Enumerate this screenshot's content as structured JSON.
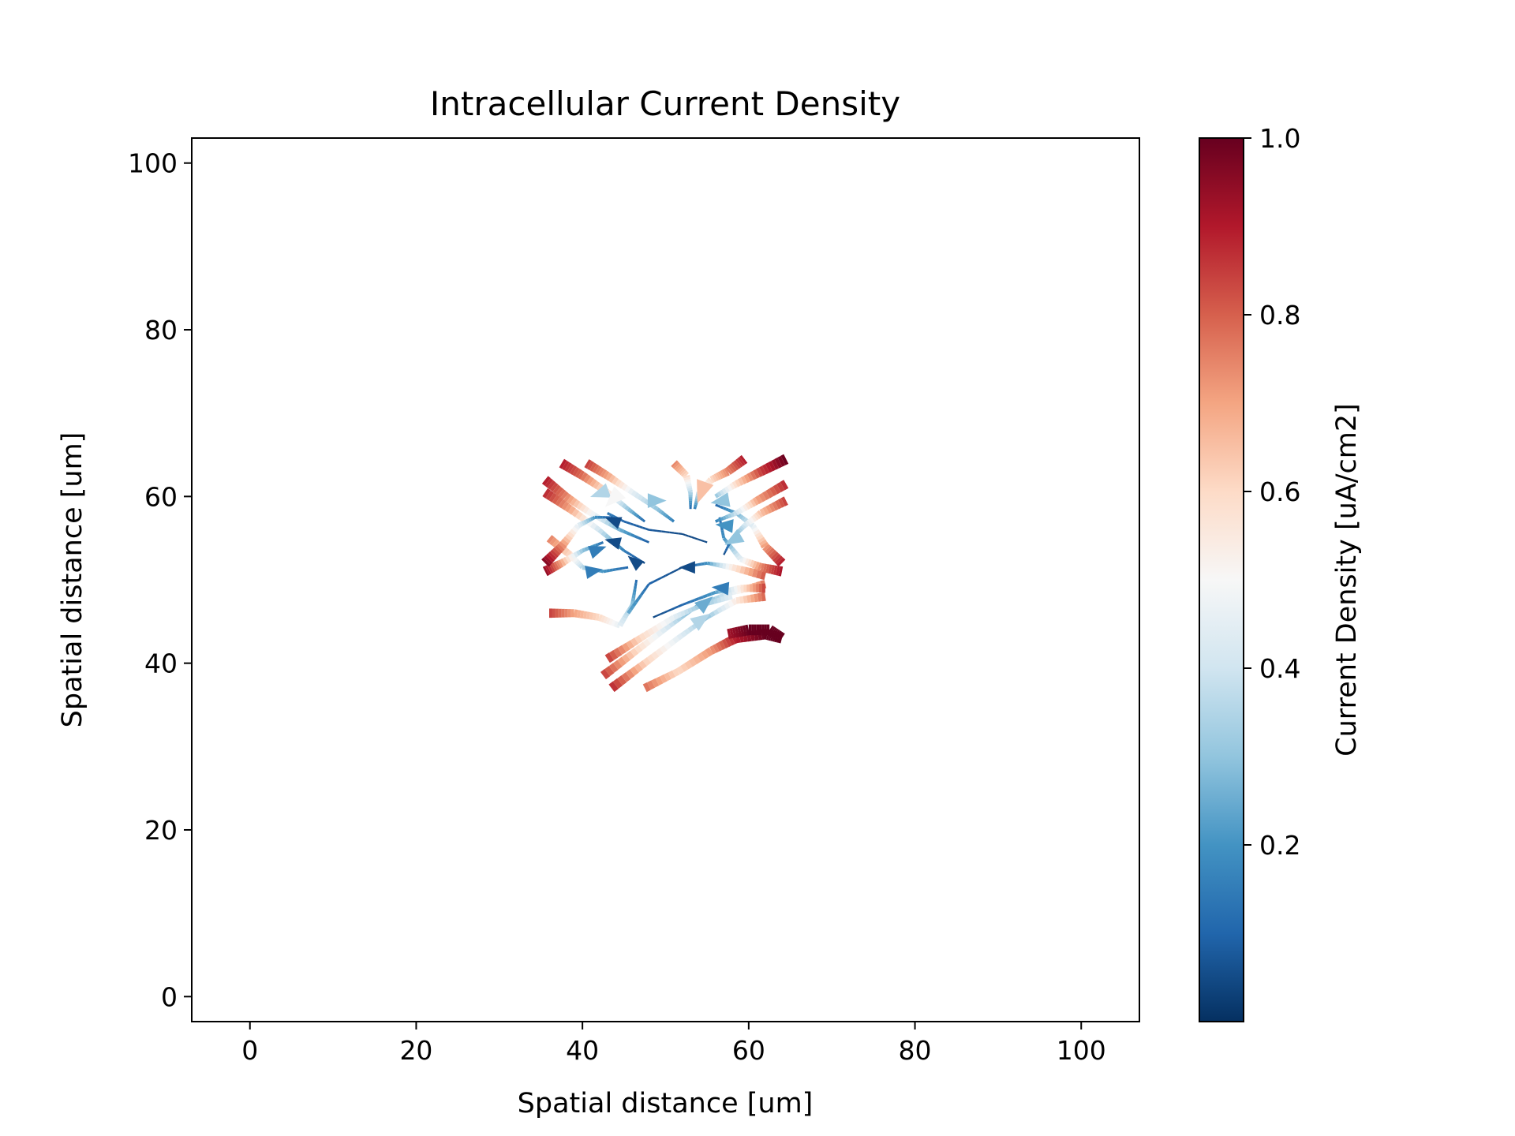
{
  "chart_data": {
    "type": "streamplot",
    "title": "Intracellular Current Density",
    "xlabel": "Spatial distance [um]",
    "ylabel": "Spatial distance [um]",
    "xlim": [
      -7,
      107
    ],
    "ylim": [
      -3,
      103
    ],
    "xticks": [
      0,
      20,
      40,
      60,
      80,
      100
    ],
    "yticks": [
      0,
      20,
      40,
      60,
      80,
      100
    ],
    "grid": false,
    "colormap": "RdBu_r",
    "colors": [
      "#053061",
      "#2166ac",
      "#4393c3",
      "#92c5de",
      "#d1e5f0",
      "#f7f7f7",
      "#fddbc7",
      "#f4a582",
      "#d6604d",
      "#b2182b",
      "#67001f"
    ],
    "colorbar": {
      "label": "Current Density [uA/cm2]",
      "range": [
        0.0,
        1.0
      ],
      "ticks": [
        0.2,
        0.4,
        0.6,
        0.8,
        1.0
      ],
      "tick_labels": [
        "0.2",
        "0.4",
        "0.6",
        "0.8",
        "1.0"
      ]
    },
    "streamlines": [
      {
        "points": [
          [
            37.5,
            64.0
          ],
          [
            40.0,
            62.5
          ],
          [
            43.0,
            60.5
          ],
          [
            45.5,
            58.5
          ],
          [
            47.5,
            57.0
          ]
        ],
        "values": [
          0.9,
          0.78,
          0.55,
          0.3,
          0.1
        ]
      },
      {
        "points": [
          [
            40.5,
            64.0
          ],
          [
            43.0,
            62.5
          ],
          [
            46.0,
            60.5
          ],
          [
            49.0,
            58.5
          ],
          [
            51.0,
            57.0
          ]
        ],
        "values": [
          0.85,
          0.7,
          0.45,
          0.3,
          0.15
        ]
      },
      {
        "points": [
          [
            35.5,
            62.0
          ],
          [
            38.0,
            60.0
          ],
          [
            41.0,
            58.0
          ],
          [
            44.5,
            56.0
          ],
          [
            48.0,
            54.5
          ]
        ],
        "values": [
          0.9,
          0.75,
          0.5,
          0.25,
          0.08
        ]
      },
      {
        "points": [
          [
            35.5,
            60.5
          ],
          [
            38.5,
            58.5
          ],
          [
            42.0,
            56.0
          ],
          [
            45.0,
            53.5
          ],
          [
            47.5,
            52.0
          ]
        ],
        "values": [
          0.88,
          0.7,
          0.4,
          0.15,
          0.05
        ]
      },
      {
        "points": [
          [
            36.0,
            55.0
          ],
          [
            38.5,
            53.0
          ],
          [
            40.0,
            51.5
          ],
          [
            42.5,
            51.0
          ],
          [
            45.5,
            51.5
          ]
        ],
        "values": [
          0.75,
          0.6,
          0.35,
          0.2,
          0.1
        ]
      },
      {
        "points": [
          [
            35.5,
            51.0
          ],
          [
            37.5,
            52.0
          ],
          [
            40.0,
            53.5
          ],
          [
            42.5,
            54.5
          ]
        ],
        "values": [
          0.95,
          0.7,
          0.3,
          0.12
        ]
      },
      {
        "points": [
          [
            35.5,
            52.0
          ],
          [
            37.5,
            54.0
          ],
          [
            39.5,
            56.5
          ],
          [
            41.5,
            57.5
          ],
          [
            44.0,
            57.5
          ]
        ],
        "values": [
          0.97,
          0.75,
          0.45,
          0.2,
          0.05
        ]
      },
      {
        "points": [
          [
            36.0,
            46.0
          ],
          [
            39.0,
            46.0
          ],
          [
            42.0,
            45.5
          ],
          [
            44.5,
            44.5
          ],
          [
            46.0,
            47.0
          ],
          [
            46.5,
            50.0
          ]
        ],
        "values": [
          0.85,
          0.7,
          0.6,
          0.45,
          0.3,
          0.1
        ]
      },
      {
        "points": [
          [
            43.5,
            37.0
          ],
          [
            47.5,
            40.0
          ],
          [
            51.5,
            43.0
          ],
          [
            55.0,
            45.5
          ],
          [
            58.5,
            47.5
          ],
          [
            62.0,
            48.0
          ]
        ],
        "values": [
          0.88,
          0.62,
          0.45,
          0.3,
          0.55,
          0.8
        ]
      },
      {
        "points": [
          [
            42.5,
            38.5
          ],
          [
            46.5,
            41.5
          ],
          [
            50.5,
            44.5
          ],
          [
            54.0,
            47.0
          ],
          [
            58.0,
            48.5
          ],
          [
            62.0,
            49.5
          ]
        ],
        "values": [
          0.85,
          0.6,
          0.4,
          0.22,
          0.45,
          0.78
        ]
      },
      {
        "points": [
          [
            43.0,
            40.5
          ],
          [
            47.0,
            43.0
          ],
          [
            51.0,
            45.5
          ],
          [
            54.5,
            47.0
          ],
          [
            58.0,
            48.0
          ]
        ],
        "values": [
          0.85,
          0.6,
          0.45,
          0.3,
          0.45
        ]
      },
      {
        "points": [
          [
            47.5,
            37.0
          ],
          [
            51.5,
            39.0
          ],
          [
            55.5,
            41.5
          ],
          [
            58.5,
            43.0
          ],
          [
            62.0,
            43.5
          ],
          [
            64.0,
            43.0
          ]
        ],
        "values": [
          0.78,
          0.6,
          0.72,
          0.9,
          1.0,
          1.0
        ]
      },
      {
        "points": [
          [
            57.5,
            43.5
          ],
          [
            60.0,
            44.0
          ],
          [
            62.5,
            44.0
          ],
          [
            64.0,
            43.0
          ]
        ],
        "values": [
          0.92,
          1.0,
          1.0,
          1.0
        ]
      },
      {
        "points": [
          [
            62.0,
            49.0
          ],
          [
            59.0,
            49.0
          ],
          [
            56.0,
            48.5
          ],
          [
            52.0,
            47.0
          ],
          [
            48.5,
            45.5
          ]
        ],
        "values": [
          0.85,
          0.55,
          0.22,
          0.1,
          0.05
        ]
      },
      {
        "points": [
          [
            62.0,
            50.5
          ],
          [
            58.0,
            51.5
          ],
          [
            55.0,
            52.0
          ],
          [
            52.0,
            51.5
          ],
          [
            48.0,
            49.5
          ],
          [
            45.5,
            46.0
          ]
        ],
        "values": [
          0.82,
          0.55,
          0.2,
          0.05,
          0.1,
          0.25
        ]
      },
      {
        "points": [
          [
            64.0,
            51.0
          ],
          [
            61.5,
            51.5
          ],
          [
            59.0,
            52.5
          ],
          [
            57.0,
            55.0
          ],
          [
            56.5,
            57.5
          ]
        ],
        "values": [
          0.92,
          0.75,
          0.45,
          0.2,
          0.1
        ]
      },
      {
        "points": [
          [
            64.0,
            52.0
          ],
          [
            62.0,
            54.0
          ],
          [
            60.5,
            56.5
          ],
          [
            58.5,
            58.0
          ],
          [
            56.0,
            59.0
          ]
        ],
        "values": [
          0.9,
          0.72,
          0.45,
          0.25,
          0.1
        ]
      },
      {
        "points": [
          [
            64.5,
            59.5
          ],
          [
            61.5,
            58.0
          ],
          [
            59.5,
            56.5
          ],
          [
            58.0,
            55.0
          ],
          [
            57.0,
            53.0
          ]
        ],
        "values": [
          0.85,
          0.65,
          0.4,
          0.2,
          0.05
        ]
      },
      {
        "points": [
          [
            64.5,
            61.5
          ],
          [
            61.0,
            59.5
          ],
          [
            58.5,
            58.0
          ],
          [
            56.0,
            57.0
          ]
        ],
        "values": [
          0.88,
          0.7,
          0.4,
          0.15
        ]
      },
      {
        "points": [
          [
            64.5,
            64.5
          ],
          [
            61.5,
            63.0
          ],
          [
            58.5,
            61.5
          ],
          [
            56.0,
            60.0
          ]
        ],
        "values": [
          1.0,
          0.85,
          0.6,
          0.3
        ]
      },
      {
        "points": [
          [
            59.5,
            64.5
          ],
          [
            57.5,
            63.0
          ],
          [
            55.5,
            62.0
          ],
          [
            54.0,
            60.5
          ],
          [
            53.5,
            58.5
          ]
        ],
        "values": [
          0.9,
          0.75,
          0.6,
          0.4,
          0.15
        ]
      },
      {
        "points": [
          [
            51.0,
            64.0
          ],
          [
            52.5,
            62.5
          ],
          [
            53.0,
            60.5
          ],
          [
            53.0,
            58.5
          ]
        ],
        "values": [
          0.75,
          0.6,
          0.35,
          0.1
        ]
      },
      {
        "points": [
          [
            55.0,
            54.5
          ],
          [
            52.0,
            55.5
          ],
          [
            48.0,
            56.0
          ],
          [
            45.0,
            57.0
          ],
          [
            43.0,
            58.0
          ]
        ],
        "values": [
          0.05,
          0.05,
          0.08,
          0.1,
          0.15
        ]
      }
    ],
    "arrows": [
      {
        "x": 42.5,
        "y": 60.5,
        "dir": 200,
        "value": 0.35
      },
      {
        "x": 48.5,
        "y": 59.5,
        "dir": 0,
        "value": 0.3
      },
      {
        "x": 44.0,
        "y": 57.0,
        "dir": 160,
        "value": 0.05
      },
      {
        "x": 44.0,
        "y": 54.5,
        "dir": 165,
        "value": 0.05
      },
      {
        "x": 46.5,
        "y": 52.0,
        "dir": 140,
        "value": 0.05
      },
      {
        "x": 41.5,
        "y": 53.5,
        "dir": 20,
        "value": 0.15
      },
      {
        "x": 41.0,
        "y": 51.0,
        "dir": 10,
        "value": 0.15
      },
      {
        "x": 53.0,
        "y": 51.5,
        "dir": 180,
        "value": 0.05
      },
      {
        "x": 57.0,
        "y": 49.0,
        "dir": 175,
        "value": 0.15
      },
      {
        "x": 57.5,
        "y": 56.5,
        "dir": 175,
        "value": 0.2
      },
      {
        "x": 58.5,
        "y": 55.0,
        "dir": 210,
        "value": 0.3
      },
      {
        "x": 57.0,
        "y": 59.5,
        "dir": 190,
        "value": 0.3
      },
      {
        "x": 54.5,
        "y": 47.0,
        "dir": 40,
        "value": 0.25
      },
      {
        "x": 54.0,
        "y": 45.0,
        "dir": 35,
        "value": 0.35
      },
      {
        "x": 44.0,
        "y": 60.0,
        "dir": 225,
        "value": 0.5
      },
      {
        "x": 54.5,
        "y": 61.0,
        "dir": 250,
        "value": 0.65
      }
    ]
  }
}
